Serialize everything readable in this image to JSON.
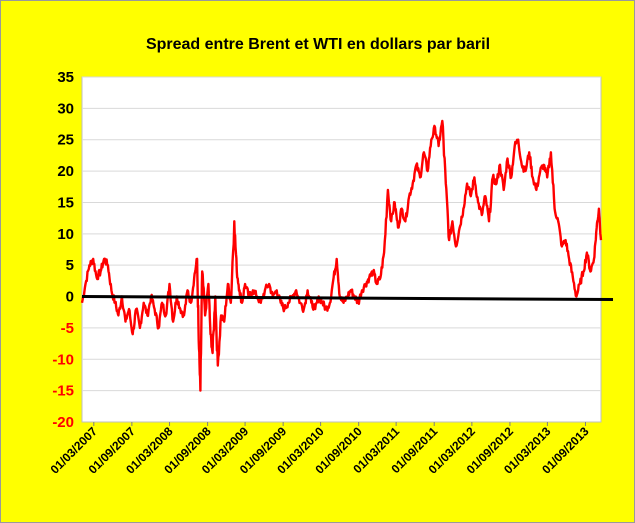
{
  "chart_data": {
    "type": "line",
    "title": "Spread entre Brent et WTI en dollars par baril",
    "xlabel": "",
    "ylabel": "",
    "ylim": [
      -20,
      35
    ],
    "yticks": [
      35,
      30,
      25,
      20,
      15,
      10,
      5,
      0,
      -5,
      -10,
      -15,
      -20
    ],
    "xlim": [
      "2007-01-03",
      "2013-11-15"
    ],
    "xticks": [
      "01/03/2007",
      "01/09/2007",
      "01/03/2008",
      "01/09/2008",
      "01/03/2009",
      "01/09/2009",
      "01/03/2010",
      "01/09/2010",
      "01/03/2011",
      "01/09/2011",
      "01/03/2012",
      "01/09/2012",
      "01/03/2013",
      "01/09/2013"
    ],
    "grid": "horizontal",
    "legend": "none",
    "colors": {
      "background": "#ffff00",
      "plot_area": "#ffffff",
      "series": "#ff0000",
      "zero_line": "#000000",
      "positive_ticks": "#000000",
      "negative_ticks": "#ff0000",
      "gridlines": "#d9d9d9"
    },
    "series": [
      {
        "x": [
          "2007-01-03",
          "2007-01-20",
          "2007-02-08",
          "2007-02-26",
          "2007-03-15",
          "2007-04-03",
          "2007-04-20",
          "2007-05-08",
          "2007-05-25",
          "2007-06-12",
          "2007-06-28",
          "2007-07-15",
          "2007-08-01",
          "2007-08-18",
          "2007-09-05",
          "2007-09-22",
          "2007-10-10",
          "2007-10-28",
          "2007-11-15",
          "2007-12-03",
          "2007-12-20",
          "2008-01-08",
          "2008-01-25",
          "2008-02-12",
          "2008-03-01",
          "2008-03-18",
          "2008-04-05",
          "2008-04-22",
          "2008-05-10",
          "2008-05-27",
          "2008-06-12",
          "2008-06-28",
          "2008-07-12",
          "2008-07-20",
          "2008-07-28",
          "2008-08-06",
          "2008-08-20",
          "2008-09-05",
          "2008-09-15",
          "2008-09-25",
          "2008-10-08",
          "2008-10-20",
          "2008-11-05",
          "2008-11-20",
          "2008-12-08",
          "2008-12-22",
          "2009-01-08",
          "2009-01-20",
          "2009-02-02",
          "2009-02-14",
          "2009-03-01",
          "2009-03-20",
          "2009-04-08",
          "2009-04-28",
          "2009-05-16",
          "2009-06-05",
          "2009-06-25",
          "2009-07-13",
          "2009-08-01",
          "2009-08-20",
          "2009-09-07",
          "2009-09-25",
          "2009-10-15",
          "2009-11-03",
          "2009-11-22",
          "2009-12-10",
          "2009-12-28",
          "2010-01-15",
          "2010-02-03",
          "2010-02-20",
          "2010-03-10",
          "2010-03-28",
          "2010-04-15",
          "2010-05-03",
          "2010-05-18",
          "2010-06-02",
          "2010-06-20",
          "2010-07-08",
          "2010-07-25",
          "2010-08-12",
          "2010-08-30",
          "2010-09-17",
          "2010-10-05",
          "2010-10-22",
          "2010-11-10",
          "2010-11-28",
          "2010-12-15",
          "2011-01-02",
          "2011-01-20",
          "2011-02-05",
          "2011-02-22",
          "2011-03-10",
          "2011-03-28",
          "2011-04-15",
          "2011-05-03",
          "2011-05-20",
          "2011-06-07",
          "2011-06-25",
          "2011-07-13",
          "2011-07-31",
          "2011-08-18",
          "2011-09-05",
          "2011-09-22",
          "2011-10-10",
          "2011-10-27",
          "2011-11-12",
          "2011-11-28",
          "2011-12-15",
          "2012-01-02",
          "2012-01-20",
          "2012-02-07",
          "2012-02-25",
          "2012-03-13",
          "2012-03-31",
          "2012-04-18",
          "2012-05-05",
          "2012-05-23",
          "2012-06-10",
          "2012-06-28",
          "2012-07-15",
          "2012-08-02",
          "2012-08-20",
          "2012-09-07",
          "2012-09-24",
          "2012-10-11",
          "2012-10-28",
          "2012-11-15",
          "2012-12-03",
          "2012-12-20",
          "2013-01-07",
          "2013-01-25",
          "2013-02-11",
          "2013-02-28",
          "2013-03-18",
          "2013-04-05",
          "2013-04-22",
          "2013-05-10",
          "2013-05-28",
          "2013-06-14",
          "2013-07-02",
          "2013-07-19",
          "2013-08-05",
          "2013-08-22",
          "2013-09-08",
          "2013-09-25",
          "2013-10-12",
          "2013-10-25",
          "2013-11-05",
          "2013-11-15"
        ],
        "y": [
          -1,
          2,
          5,
          6,
          3,
          4,
          6,
          5,
          1,
          -1,
          -3,
          0,
          -4,
          -2,
          -6,
          -2,
          -5,
          -1,
          -3,
          0,
          -2,
          -5,
          -1,
          -3,
          2,
          -4,
          0,
          -2,
          -3,
          1,
          -1,
          3,
          6,
          -7,
          -15,
          4,
          -3,
          2,
          -6,
          -9,
          0,
          -11,
          -3,
          -4,
          2,
          -1,
          12,
          4,
          1,
          -1,
          2,
          0,
          1,
          0,
          -1,
          1,
          2,
          0,
          1,
          -1,
          -2,
          -1,
          0,
          1,
          -1,
          -2,
          1,
          -1,
          -2,
          0,
          -1,
          -2,
          -1,
          3,
          6,
          0,
          -1,
          0,
          1,
          0,
          -1,
          1,
          2,
          3,
          4,
          2,
          3,
          7,
          17,
          12,
          15,
          11,
          14,
          12,
          16,
          18,
          21,
          19,
          23,
          20,
          25,
          27,
          24,
          28,
          18,
          9,
          12,
          8,
          11,
          14,
          18,
          16,
          19,
          15,
          13,
          16,
          12,
          19,
          18,
          21,
          17,
          22,
          19,
          24,
          25,
          21,
          20,
          23,
          19,
          17,
          20,
          21,
          19,
          23,
          14,
          12,
          8,
          9,
          6,
          3,
          0,
          2,
          4,
          7,
          4,
          6,
          11,
          14,
          9
        ]
      }
    ]
  }
}
